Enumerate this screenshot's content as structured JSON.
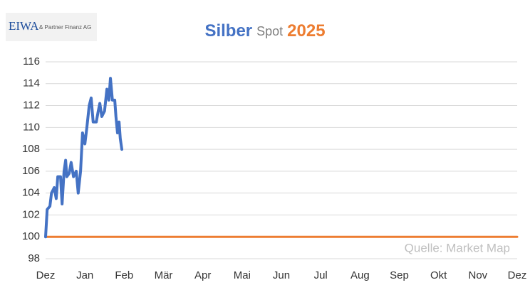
{
  "chart_data": {
    "type": "line",
    "logo": {
      "name": "EIWA",
      "tagline": "& Partner Finanz AG"
    },
    "title_parts": [
      {
        "text": "Silber",
        "color": "#4472c4"
      },
      {
        "text": "Spot",
        "color": "#7f7f7f"
      },
      {
        "text": "2025",
        "color": "#ed7d31"
      }
    ],
    "annotation": "Quelle: Market Map",
    "categories": [
      "Dez",
      "Jan",
      "Feb",
      "Mär",
      "Apr",
      "Mai",
      "Jun",
      "Jul",
      "Aug",
      "Sep",
      "Okt",
      "Nov",
      "Dez"
    ],
    "xlim": [
      0,
      12
    ],
    "ylim": [
      98,
      116
    ],
    "yticks": [
      98,
      100,
      102,
      104,
      106,
      108,
      110,
      112,
      114,
      116
    ],
    "grid": true,
    "series": [
      {
        "color": "#ed7d31",
        "x": [
          0,
          12
        ],
        "values": [
          100,
          100
        ]
      },
      {
        "color": "#4472c4",
        "x": [
          0,
          0.04,
          0.11,
          0.15,
          0.22,
          0.27,
          0.31,
          0.38,
          0.42,
          0.47,
          0.51,
          0.54,
          0.6,
          0.65,
          0.71,
          0.78,
          0.83,
          0.89,
          0.94,
          1.0,
          1.05,
          1.11,
          1.16,
          1.21,
          1.29,
          1.34,
          1.38,
          1.43,
          1.5,
          1.56,
          1.61,
          1.65,
          1.7,
          1.76,
          1.79,
          1.83,
          1.87,
          1.9,
          1.94
        ],
        "values": [
          100,
          102.5,
          102.8,
          104,
          104.5,
          103.5,
          105.5,
          105.5,
          103,
          106,
          107,
          105.5,
          105.8,
          106.8,
          105.5,
          106,
          104,
          106,
          109.5,
          108.5,
          110,
          112,
          112.7,
          110.5,
          110.5,
          111.5,
          112.2,
          111,
          111.5,
          113.5,
          112.5,
          114.5,
          112.5,
          112.5,
          111,
          109.5,
          110.5,
          109,
          108
        ]
      }
    ]
  }
}
